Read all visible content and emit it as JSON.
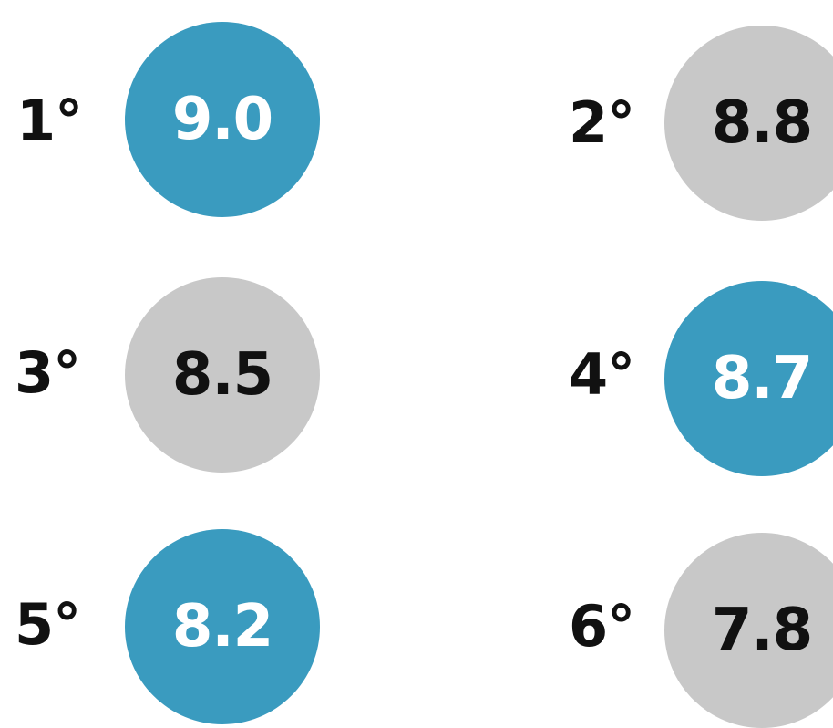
{
  "items": [
    {
      "rank": "1°",
      "score": "9.0",
      "color": "#3a9bbf"
    },
    {
      "rank": "2°",
      "score": "8.8",
      "color": "#c8c8c8"
    },
    {
      "rank": "3°",
      "score": "8.5",
      "color": "#c8c8c8"
    },
    {
      "rank": "4°",
      "score": "8.7",
      "color": "#3a9bbf"
    },
    {
      "rank": "5°",
      "score": "8.2",
      "color": "#3a9bbf"
    },
    {
      "rank": "6°",
      "score": "7.8",
      "color": "#c8c8c8"
    }
  ]
}
